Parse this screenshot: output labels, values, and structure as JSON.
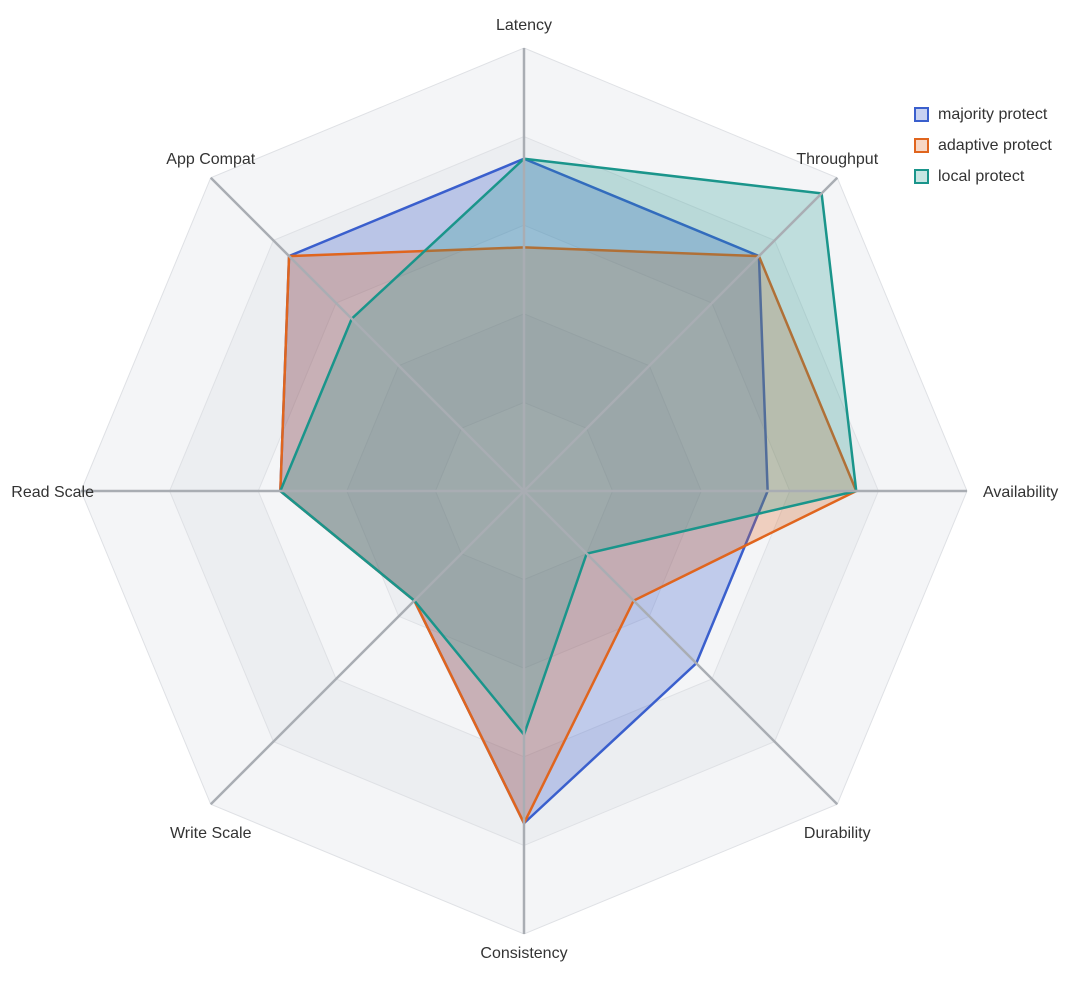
{
  "chart_data": {
    "type": "radar",
    "axes": [
      "Latency",
      "Throughput",
      "Availability",
      "Durability",
      "Consistency",
      "Write Scale",
      "Read Scale",
      "App Compat"
    ],
    "range": [
      0,
      10
    ],
    "grid": true,
    "legend_position": "top-right",
    "series": [
      {
        "name": "majority protect",
        "values": [
          7.5,
          7.5,
          5.5,
          5.5,
          7.5,
          3.5,
          5.5,
          7.5
        ],
        "color": "#3a5fcd",
        "fill": "rgba(58,95,205,0.28)"
      },
      {
        "name": "adaptive protect",
        "values": [
          5.5,
          7.5,
          7.5,
          3.5,
          7.5,
          3.5,
          5.5,
          7.5
        ],
        "color": "#e0651e",
        "fill": "rgba(224,101,30,0.26)"
      },
      {
        "name": "local protect",
        "values": [
          7.5,
          9.5,
          7.5,
          2.0,
          5.5,
          3.5,
          5.5,
          5.5
        ],
        "color": "#1a958b",
        "fill": "rgba(26,149,139,0.24)"
      }
    ]
  }
}
